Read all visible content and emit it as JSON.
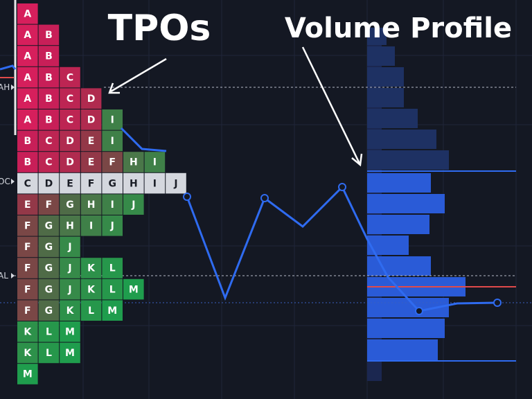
{
  "titles": {
    "tpo": "TPOs",
    "volume_profile": "Volume Profile"
  },
  "price_labels": [
    "AH",
    "OC",
    "AL"
  ],
  "tpo_rows": [
    [
      "A"
    ],
    [
      "A",
      "B"
    ],
    [
      "A",
      "B"
    ],
    [
      "A",
      "B",
      "C"
    ],
    [
      "A",
      "B",
      "C",
      "D"
    ],
    [
      "A",
      "B",
      "C",
      "D",
      "I"
    ],
    [
      "B",
      "C",
      "D",
      "E",
      "I"
    ],
    [
      "B",
      "C",
      "D",
      "E",
      "F",
      "H",
      "I"
    ],
    [
      "C",
      "D",
      "E",
      "F",
      "G",
      "H",
      "I",
      "J"
    ],
    [
      "E",
      "F",
      "G",
      "H",
      "I",
      "J"
    ],
    [
      "F",
      "G",
      "H",
      "I",
      "J"
    ],
    [
      "F",
      "G",
      "J"
    ],
    [
      "F",
      "G",
      "J",
      "K",
      "L"
    ],
    [
      "F",
      "G",
      "J",
      "K",
      "L",
      "M"
    ],
    [
      "F",
      "G",
      "K",
      "L",
      "M"
    ],
    [
      "K",
      "L",
      "M"
    ],
    [
      "K",
      "L",
      "M"
    ],
    [
      "M"
    ]
  ]
}
